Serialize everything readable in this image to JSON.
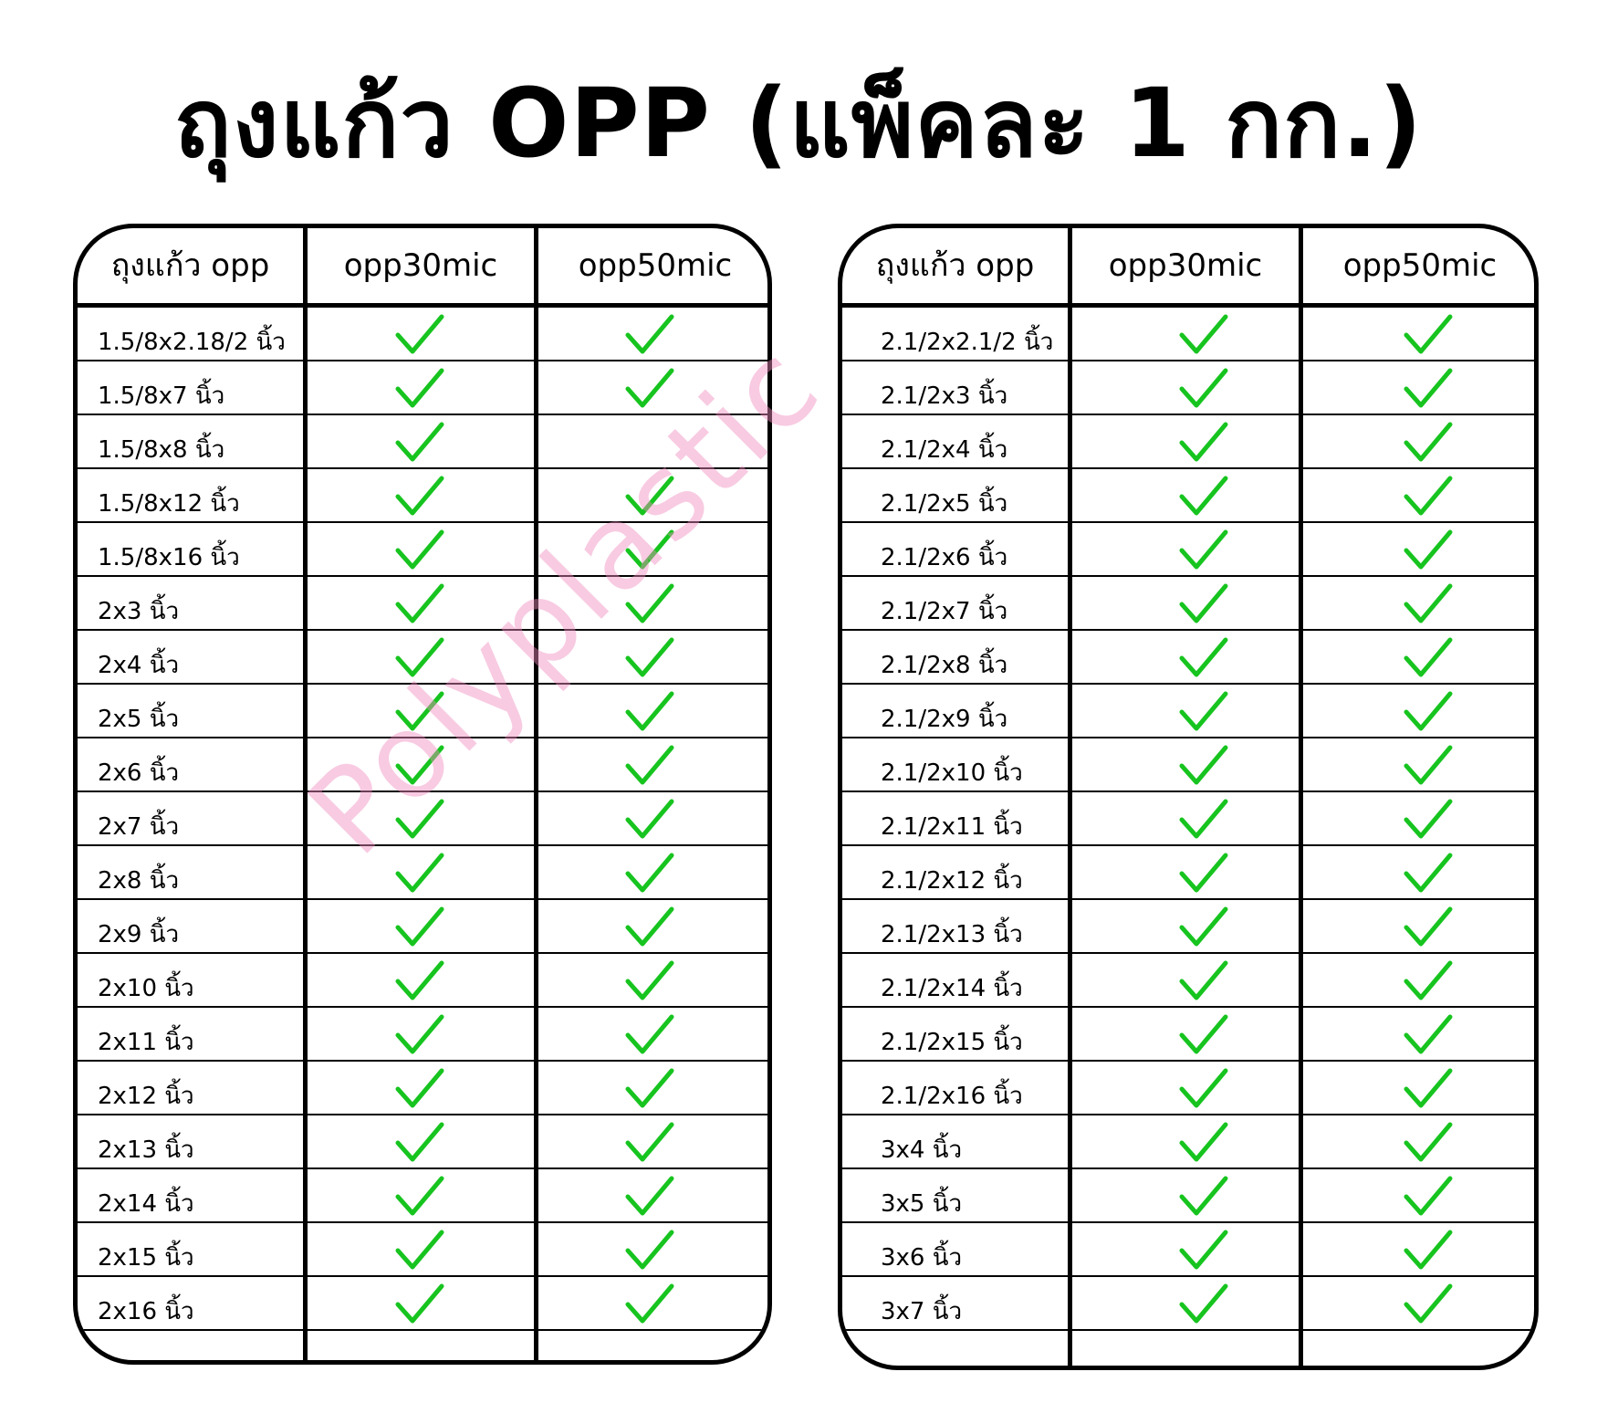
{
  "title": "ถุงแก้ว OPP (แพ็คละ 1 กก.)",
  "watermark": "Polyplastic",
  "colors": {
    "check": "#17c41f",
    "watermark": "#f08cbe",
    "border": "#000000"
  },
  "check_icon": "check-icon",
  "tables": [
    {
      "headers": [
        "ถุงแก้ว opp",
        "opp30mic",
        "opp50mic"
      ],
      "rows": [
        {
          "size": "1.5/8x2.18/2 นิ้ว",
          "opp30mic": true,
          "opp50mic": true
        },
        {
          "size": "1.5/8x7 นิ้ว",
          "opp30mic": true,
          "opp50mic": true
        },
        {
          "size": "1.5/8x8 นิ้ว",
          "opp30mic": true,
          "opp50mic": false
        },
        {
          "size": "1.5/8x12 นิ้ว",
          "opp30mic": true,
          "opp50mic": true
        },
        {
          "size": "1.5/8x16 นิ้ว",
          "opp30mic": true,
          "opp50mic": true
        },
        {
          "size": "2x3 นิ้ว",
          "opp30mic": true,
          "opp50mic": true
        },
        {
          "size": "2x4 นิ้ว",
          "opp30mic": true,
          "opp50mic": true
        },
        {
          "size": "2x5 นิ้ว",
          "opp30mic": true,
          "opp50mic": true
        },
        {
          "size": "2x6 นิ้ว",
          "opp30mic": true,
          "opp50mic": true
        },
        {
          "size": "2x7 นิ้ว",
          "opp30mic": true,
          "opp50mic": true
        },
        {
          "size": "2x8 นิ้ว",
          "opp30mic": true,
          "opp50mic": true
        },
        {
          "size": "2x9 นิ้ว",
          "opp30mic": true,
          "opp50mic": true
        },
        {
          "size": "2x10 นิ้ว",
          "opp30mic": true,
          "opp50mic": true
        },
        {
          "size": "2x11 นิ้ว",
          "opp30mic": true,
          "opp50mic": true
        },
        {
          "size": "2x12 นิ้ว",
          "opp30mic": true,
          "opp50mic": true
        },
        {
          "size": "2x13 นิ้ว",
          "opp30mic": true,
          "opp50mic": true
        },
        {
          "size": "2x14 นิ้ว",
          "opp30mic": true,
          "opp50mic": true
        },
        {
          "size": "2x15 นิ้ว",
          "opp30mic": true,
          "opp50mic": true
        },
        {
          "size": "2x16 นิ้ว",
          "opp30mic": true,
          "opp50mic": true
        },
        {
          "size": "",
          "opp30mic": false,
          "opp50mic": false
        }
      ]
    },
    {
      "headers": [
        "ถุงแก้ว opp",
        "opp30mic",
        "opp50mic"
      ],
      "rows": [
        {
          "size": "2.1/2x2.1/2 นิ้ว",
          "opp30mic": true,
          "opp50mic": true
        },
        {
          "size": "2.1/2x3 นิ้ว",
          "opp30mic": true,
          "opp50mic": true
        },
        {
          "size": "2.1/2x4 นิ้ว",
          "opp30mic": true,
          "opp50mic": true
        },
        {
          "size": "2.1/2x5 นิ้ว",
          "opp30mic": true,
          "opp50mic": true
        },
        {
          "size": "2.1/2x6 นิ้ว",
          "opp30mic": true,
          "opp50mic": true
        },
        {
          "size": "2.1/2x7 นิ้ว",
          "opp30mic": true,
          "opp50mic": true
        },
        {
          "size": "2.1/2x8 นิ้ว",
          "opp30mic": true,
          "opp50mic": true
        },
        {
          "size": "2.1/2x9 นิ้ว",
          "opp30mic": true,
          "opp50mic": true
        },
        {
          "size": "2.1/2x10 นิ้ว",
          "opp30mic": true,
          "opp50mic": true
        },
        {
          "size": "2.1/2x11 นิ้ว",
          "opp30mic": true,
          "opp50mic": true
        },
        {
          "size": "2.1/2x12 นิ้ว",
          "opp30mic": true,
          "opp50mic": true
        },
        {
          "size": "2.1/2x13 นิ้ว",
          "opp30mic": true,
          "opp50mic": true
        },
        {
          "size": "2.1/2x14 นิ้ว",
          "opp30mic": true,
          "opp50mic": true
        },
        {
          "size": "2.1/2x15 นิ้ว",
          "opp30mic": true,
          "opp50mic": true
        },
        {
          "size": "2.1/2x16 นิ้ว",
          "opp30mic": true,
          "opp50mic": true
        },
        {
          "size": "3x4 นิ้ว",
          "opp30mic": true,
          "opp50mic": true
        },
        {
          "size": "3x5 นิ้ว",
          "opp30mic": true,
          "opp50mic": true
        },
        {
          "size": "3x6 นิ้ว",
          "opp30mic": true,
          "opp50mic": true
        },
        {
          "size": "3x7 นิ้ว",
          "opp30mic": true,
          "opp50mic": true
        },
        {
          "size": "",
          "opp30mic": false,
          "opp50mic": false
        }
      ]
    }
  ]
}
